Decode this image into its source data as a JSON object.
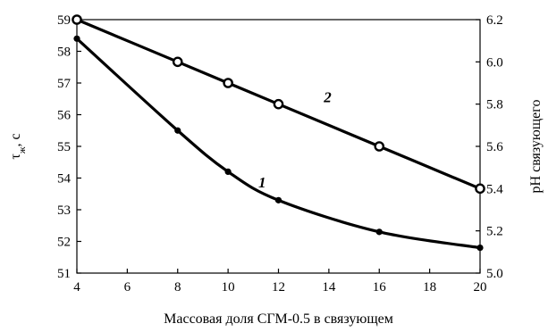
{
  "chart_data": {
    "type": "line",
    "x": [
      4,
      8,
      10,
      12,
      16,
      20
    ],
    "xlabel": "Массовая доля СГМ-0.5 в связующем",
    "xlim": [
      4,
      20
    ],
    "xticks": [
      4,
      6,
      8,
      10,
      12,
      14,
      16,
      18,
      20
    ],
    "ylabel_left": "τж, с",
    "ylim_left": [
      51,
      59
    ],
    "yticks_left": [
      51,
      52,
      53,
      54,
      55,
      56,
      57,
      58,
      59
    ],
    "ylabel_right": "pH связующего",
    "ylim_right": [
      5.0,
      6.2
    ],
    "yticks_right": [
      "5.0",
      "5.2",
      "5.4",
      "5.6",
      "5.8",
      "6.0",
      "6.2"
    ],
    "grid": false,
    "series": [
      {
        "name": "1",
        "axis": "left",
        "marker": "filled-circle",
        "values": [
          58.4,
          55.5,
          54.2,
          53.3,
          52.3,
          51.8
        ]
      },
      {
        "name": "2",
        "axis": "right",
        "marker": "hollow-circle",
        "values": [
          6.2,
          6.0,
          5.9,
          5.8,
          5.6,
          5.4
        ]
      }
    ]
  }
}
